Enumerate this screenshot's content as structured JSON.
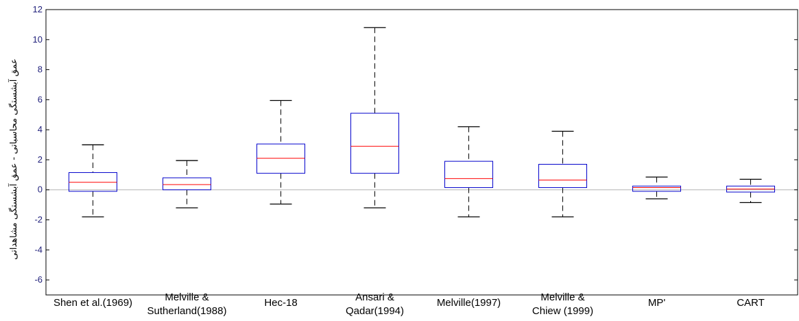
{
  "chart_data": {
    "type": "box",
    "ylabel": "عمق آبشستگی محاسباتی - عمق آبشستگی مشاهداتی",
    "ylim": [
      -7,
      12
    ],
    "yticks": [
      -6,
      -4,
      -2,
      0,
      2,
      4,
      6,
      8,
      10,
      12
    ],
    "reference_line": 0,
    "categories": [
      [
        "Shen et al.(1969)"
      ],
      [
        "Melville &",
        "Sutherland(1988)"
      ],
      [
        "Hec-18"
      ],
      [
        "Ansari &",
        "Qadar(1994)"
      ],
      [
        "Melville(1997)"
      ],
      [
        "Melville &",
        "Chiew (1999)"
      ],
      [
        "MP'"
      ],
      [
        "CART"
      ]
    ],
    "boxes": [
      {
        "min": -1.8,
        "q1": -0.1,
        "median": 0.5,
        "q3": 1.15,
        "max": 3.0
      },
      {
        "min": -1.2,
        "q1": 0.0,
        "median": 0.35,
        "q3": 0.8,
        "max": 1.95
      },
      {
        "min": -0.95,
        "q1": 1.1,
        "median": 2.1,
        "q3": 3.05,
        "max": 5.95
      },
      {
        "min": -1.2,
        "q1": 1.1,
        "median": 2.9,
        "q3": 5.1,
        "max": 10.8
      },
      {
        "min": -1.8,
        "q1": 0.15,
        "median": 0.75,
        "q3": 1.9,
        "max": 4.2
      },
      {
        "min": -1.8,
        "q1": 0.15,
        "median": 0.65,
        "q3": 1.7,
        "max": 3.9
      },
      {
        "min": -0.6,
        "q1": -0.1,
        "median": 0.15,
        "q3": 0.25,
        "max": 0.85
      },
      {
        "min": -0.85,
        "q1": -0.15,
        "median": 0.05,
        "q3": 0.25,
        "max": 0.7
      }
    ]
  },
  "colors": {
    "box": "#0000cc",
    "median": "#ff0000",
    "whisker": "#000000",
    "zero_line": "#b3b3b3",
    "axis": "#000000"
  }
}
